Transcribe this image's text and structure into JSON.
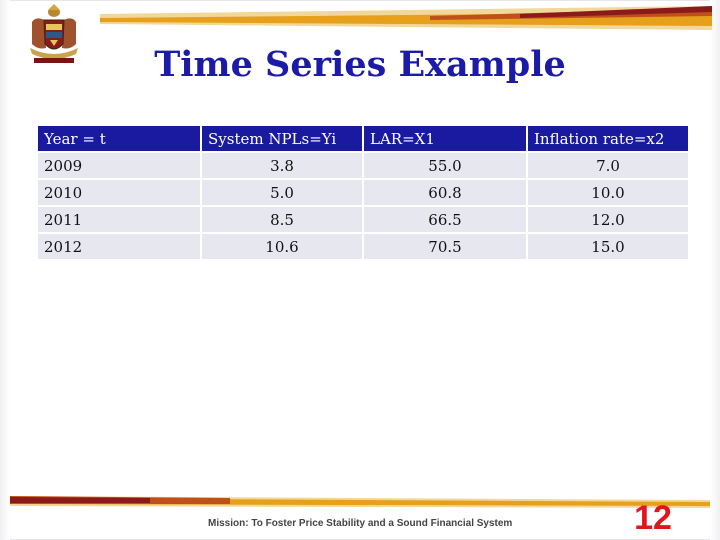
{
  "slide": {
    "title": "Time Series Example",
    "mission": "Mission: To Foster Price Stability and a Sound Financial System",
    "page_number": "12"
  },
  "table": {
    "headers": [
      "Year = t",
      "System  NPLs=Yi",
      "LAR=X1",
      "Inflation rate=x2"
    ],
    "rows": [
      [
        "2009",
        "3.8",
        "55.0",
        "7.0"
      ],
      [
        "2010",
        "5.0",
        "60.8",
        "10.0"
      ],
      [
        "2011",
        "8.5",
        "66.5",
        "12.0"
      ],
      [
        "2012",
        "10.6",
        "70.5",
        "15.0"
      ]
    ]
  },
  "colors": {
    "title": "#1b1ba8",
    "header_bg": "#1a1aa0",
    "cell_bg": "#e7e7ef",
    "stripe_dark": "#8b1a1a",
    "stripe_gold": "#e6a01c",
    "page_number": "#e0161b"
  },
  "icons": {
    "logo": "coat-of-arms-logo"
  }
}
